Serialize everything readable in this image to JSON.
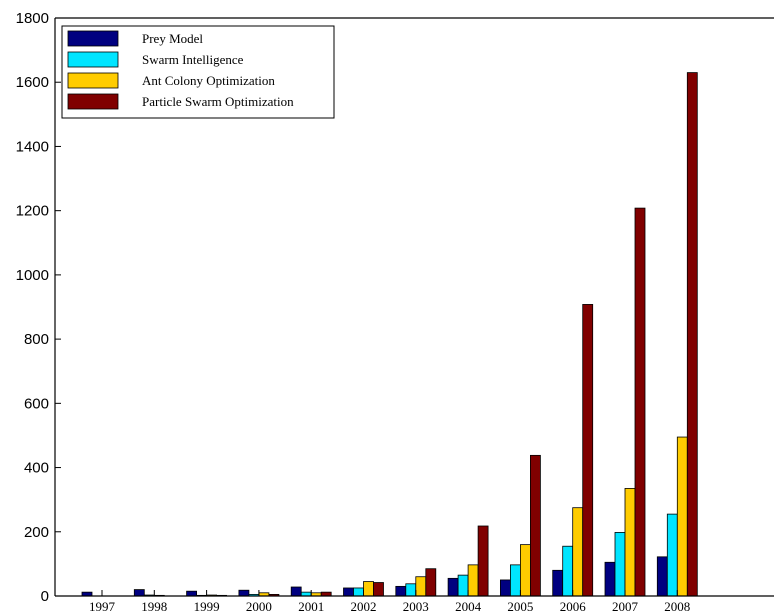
{
  "chart_data": {
    "type": "bar",
    "title": "",
    "xlabel": "",
    "ylabel": "",
    "categories": [
      "1997",
      "1998",
      "1999",
      "2000",
      "2001",
      "2002",
      "2003",
      "2004",
      "2005",
      "2006",
      "2007",
      "2008"
    ],
    "ylim": [
      0,
      1800
    ],
    "yticks": [
      0,
      200,
      400,
      600,
      800,
      1000,
      1200,
      1400,
      1600,
      1800
    ],
    "grid": false,
    "legend_position": "top-left",
    "series": [
      {
        "name": "Prey Model",
        "color": "#000080",
        "values": [
          12,
          20,
          15,
          18,
          28,
          25,
          30,
          55,
          50,
          80,
          105,
          122
        ]
      },
      {
        "name": "Swarm Intelligence",
        "color": "#00e5ff",
        "values": [
          0,
          3,
          2,
          5,
          12,
          25,
          38,
          65,
          97,
          155,
          198,
          255
        ]
      },
      {
        "name": "Ant Colony Optimization",
        "color": "#ffcc00",
        "values": [
          0,
          2,
          3,
          10,
          10,
          45,
          60,
          97,
          160,
          275,
          335,
          495
        ]
      },
      {
        "name": "Particle Swarm Optimization",
        "color": "#800000",
        "values": [
          0,
          0,
          2,
          5,
          12,
          42,
          85,
          218,
          438,
          908,
          1208,
          1630
        ]
      }
    ]
  }
}
